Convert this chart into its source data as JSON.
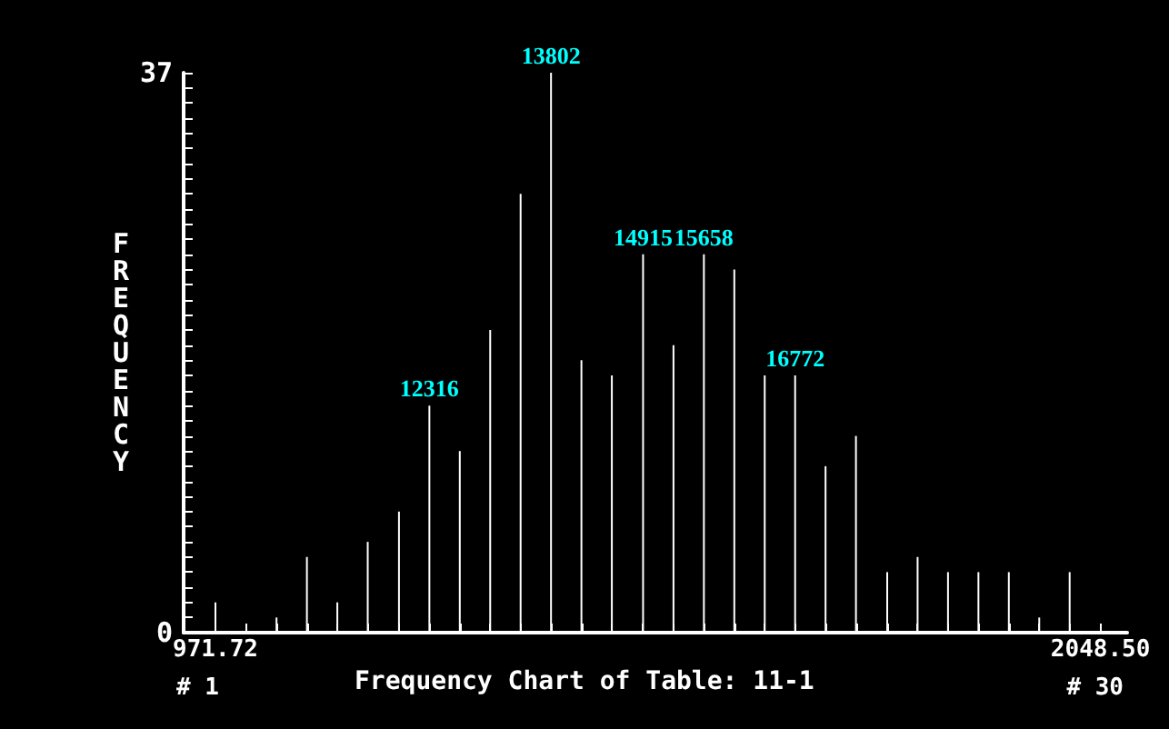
{
  "chart_data": {
    "type": "bar",
    "title": "Frequency Chart of Table: 11-1",
    "ylabel": "FREQUENCY",
    "x": [
      971.72,
      1009,
      1046,
      1083,
      1120,
      1157,
      1195,
      1232,
      1269,
      1306,
      1343,
      1380,
      1417,
      1454,
      1492,
      1529,
      1566,
      1603,
      1640,
      1677,
      1714,
      1751,
      1789,
      1826,
      1863,
      1900,
      1937,
      1974,
      2011,
      2048.5
    ],
    "values": [
      2,
      0,
      1,
      5,
      2,
      6,
      8,
      15,
      12,
      20,
      29,
      37,
      18,
      17,
      25,
      19,
      25,
      24,
      17,
      17,
      11,
      13,
      4,
      5,
      4,
      4,
      4,
      1,
      4,
      0
    ],
    "color": "#ffffff",
    "xlim": [
      933,
      2081
    ],
    "xticks": [
      971.72,
      {
        "value": 1009,
        "label": null
      },
      {
        "value": 1046,
        "label": null
      },
      {
        "value": 1083,
        "label": null
      },
      {
        "value": 1120,
        "label": null
      },
      {
        "value": 1157,
        "label": null
      },
      {
        "value": 1195,
        "label": null
      },
      {
        "value": 1232,
        "label": null
      },
      {
        "value": 1269,
        "label": null
      },
      {
        "value": 1306,
        "label": null
      },
      {
        "value": 1343,
        "label": null
      },
      {
        "value": 1380,
        "label": null
      },
      {
        "value": 1417,
        "label": null
      },
      {
        "value": 1454,
        "label": null
      },
      {
        "value": 1492,
        "label": null
      },
      {
        "value": 1529,
        "label": null
      },
      {
        "value": 1566,
        "label": null
      },
      {
        "value": 1603,
        "label": null
      },
      {
        "value": 1640,
        "label": null
      },
      {
        "value": 1677,
        "label": null
      },
      {
        "value": 1714,
        "label": null
      },
      {
        "value": 1751,
        "label": null
      },
      {
        "value": 1789,
        "label": null
      },
      {
        "value": 1826,
        "label": null
      },
      {
        "value": 1863,
        "label": null
      },
      {
        "value": 1900,
        "label": null
      },
      {
        "value": 1937,
        "label": null
      },
      {
        "value": 1974,
        "label": null
      },
      {
        "value": 2011,
        "label": null
      },
      {
        "value": 2048.5,
        "label": "2048.50"
      }
    ],
    "ylim": [
      0,
      37
    ],
    "yticks": [
      0,
      {
        "value": 1,
        "label": null
      },
      {
        "value": 2,
        "label": null
      },
      {
        "value": 3,
        "label": null
      },
      {
        "value": 4,
        "label": null
      },
      {
        "value": 5,
        "label": null
      },
      {
        "value": 6,
        "label": null
      },
      {
        "value": 7,
        "label": null
      },
      {
        "value": 8,
        "label": null
      },
      {
        "value": 9,
        "label": null
      },
      {
        "value": 10,
        "label": null
      },
      {
        "value": 11,
        "label": null
      },
      {
        "value": 12,
        "label": null
      },
      {
        "value": 13,
        "label": null
      },
      {
        "value": 14,
        "label": null
      },
      {
        "value": 15,
        "label": null
      },
      {
        "value": 16,
        "label": null
      },
      {
        "value": 17,
        "label": null
      },
      {
        "value": 18,
        "label": null
      },
      {
        "value": 19,
        "label": null
      },
      {
        "value": 20,
        "label": null
      },
      {
        "value": 21,
        "label": null
      },
      {
        "value": 22,
        "label": null
      },
      {
        "value": 23,
        "label": null
      },
      {
        "value": 24,
        "label": null
      },
      {
        "value": 25,
        "label": null
      },
      {
        "value": 26,
        "label": null
      },
      {
        "value": 27,
        "label": null
      },
      {
        "value": 28,
        "label": null
      },
      {
        "value": 29,
        "label": null
      },
      {
        "value": 30,
        "label": null
      },
      {
        "value": 31,
        "label": null
      },
      {
        "value": 32,
        "label": null
      },
      {
        "value": 33,
        "label": null
      },
      {
        "value": 34,
        "label": null
      },
      {
        "value": 35,
        "label": null
      },
      {
        "value": 36,
        "label": null
      },
      37
    ],
    "grid": false,
    "annotations": [
      {
        "text": "12316",
        "x": 1232,
        "y": 15
      },
      {
        "text": "13802",
        "x": 1380,
        "y": 37
      },
      {
        "text": "14915",
        "x": 1492,
        "y": 25
      },
      {
        "text": "15658",
        "x": 1566,
        "y": 25
      },
      {
        "text": "16772",
        "x": 1677,
        "y": 17
      },
      "# 1",
      "# 30"
    ]
  }
}
